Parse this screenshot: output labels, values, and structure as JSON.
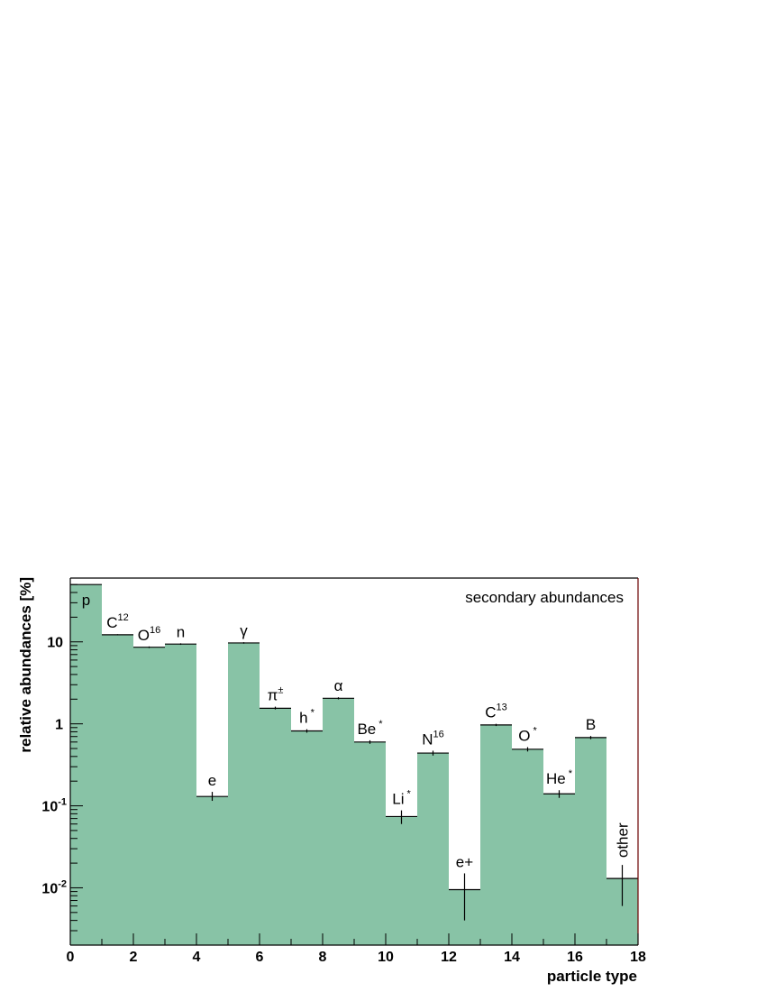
{
  "chart_data": {
    "type": "bar",
    "legend_text": "secondary abundances",
    "xlabel": "particle type",
    "ylabel": "relative abundances [%]",
    "y_scale": "log",
    "xlim": [
      0,
      18
    ],
    "ylim": [
      0.002,
      60
    ],
    "x_ticks": [
      "0",
      "2",
      "4",
      "6",
      "8",
      "10",
      "12",
      "14",
      "16",
      "18"
    ],
    "y_ticks": [
      {
        "value": 0.01,
        "base": "10",
        "exp": "-2"
      },
      {
        "value": 0.1,
        "base": "10",
        "exp": "-1"
      },
      {
        "value": 1,
        "base": "1",
        "exp": ""
      },
      {
        "value": 10,
        "base": "10",
        "exp": ""
      }
    ],
    "fill_color": "#88c3a6",
    "frame_color": "#000000",
    "right_frame_color": "#6b0000",
    "bars": [
      {
        "label": "p",
        "sup": "",
        "value": 50,
        "err_low": 50,
        "err_high": 50
      },
      {
        "label": "C",
        "sup": "12",
        "value": 12.2,
        "err_low": 12.0,
        "err_high": 12.4
      },
      {
        "label": "O",
        "sup": "16",
        "value": 8.6,
        "err_low": 8.4,
        "err_high": 8.8
      },
      {
        "label": "n",
        "sup": "",
        "value": 9.4,
        "err_low": 9.2,
        "err_high": 9.6
      },
      {
        "label": "e",
        "sup": "",
        "value": 0.13,
        "err_low": 0.115,
        "err_high": 0.148
      },
      {
        "label": "γ",
        "sup": "",
        "value": 9.7,
        "err_low": 9.5,
        "err_high": 9.9
      },
      {
        "label": "π",
        "sup": "±",
        "value": 1.55,
        "err_low": 1.5,
        "err_high": 1.62
      },
      {
        "label": "h",
        "sup": "*",
        "value": 0.82,
        "err_low": 0.78,
        "err_high": 0.86
      },
      {
        "label": "α",
        "sup": "",
        "value": 2.05,
        "err_low": 1.99,
        "err_high": 2.11
      },
      {
        "label": "Be",
        "sup": "*",
        "value": 0.6,
        "err_low": 0.57,
        "err_high": 0.63
      },
      {
        "label": "Li",
        "sup": "*",
        "value": 0.074,
        "err_low": 0.06,
        "err_high": 0.088
      },
      {
        "label": "N",
        "sup": "16",
        "value": 0.44,
        "err_low": 0.41,
        "err_high": 0.47
      },
      {
        "label": "e+",
        "sup": "",
        "value": 0.0095,
        "err_low": 0.004,
        "err_high": 0.015
      },
      {
        "label": "C",
        "sup": "13",
        "value": 0.97,
        "err_low": 0.94,
        "err_high": 1.0
      },
      {
        "label": "O",
        "sup": "*",
        "value": 0.49,
        "err_low": 0.46,
        "err_high": 0.52
      },
      {
        "label": "He",
        "sup": "*",
        "value": 0.14,
        "err_low": 0.125,
        "err_high": 0.155
      },
      {
        "label": "B",
        "sup": "",
        "value": 0.68,
        "err_low": 0.65,
        "err_high": 0.71
      },
      {
        "label": "other",
        "sup": "",
        "value": 0.013,
        "err_low": 0.006,
        "err_high": 0.019
      }
    ]
  }
}
